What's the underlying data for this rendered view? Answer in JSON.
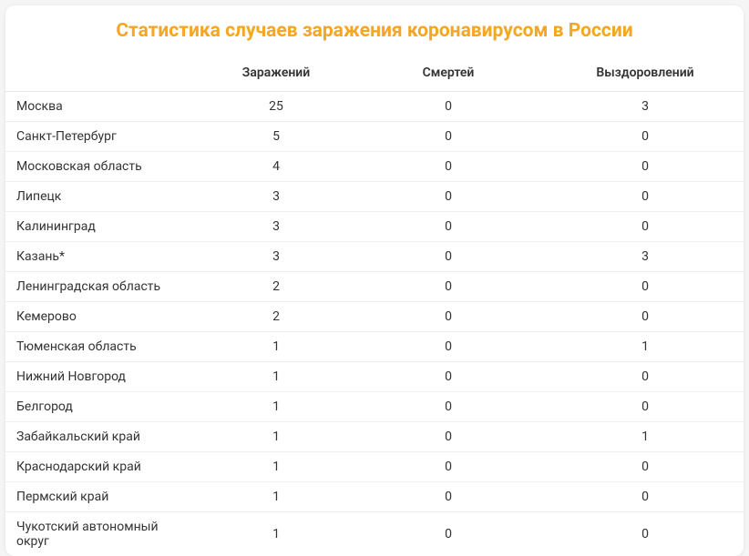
{
  "title": "Статистика случаев заражения коронавирусом в России",
  "title_color": "#f5a623",
  "background_color": "#ffffff",
  "border_color": "#eeeeee",
  "text_color": "#333333",
  "table": {
    "type": "table",
    "columns": [
      {
        "key": "region",
        "label": "",
        "align": "left"
      },
      {
        "key": "infected",
        "label": "Заражений",
        "align": "center"
      },
      {
        "key": "deaths",
        "label": "Смертей",
        "align": "center"
      },
      {
        "key": "recovered",
        "label": "Выздоровлений",
        "align": "center"
      }
    ],
    "rows": [
      {
        "region": "Москва",
        "infected": 25,
        "deaths": 0,
        "recovered": 3
      },
      {
        "region": "Санкт-Петербург",
        "infected": 5,
        "deaths": 0,
        "recovered": 0
      },
      {
        "region": "Московская область",
        "infected": 4,
        "deaths": 0,
        "recovered": 0
      },
      {
        "region": "Липецк",
        "infected": 3,
        "deaths": 0,
        "recovered": 0
      },
      {
        "region": "Калининград",
        "infected": 3,
        "deaths": 0,
        "recovered": 0
      },
      {
        "region": "Казань*",
        "infected": 3,
        "deaths": 0,
        "recovered": 3
      },
      {
        "region": "Ленинградская область",
        "infected": 2,
        "deaths": 0,
        "recovered": 0
      },
      {
        "region": "Кемерово",
        "infected": 2,
        "deaths": 0,
        "recovered": 0
      },
      {
        "region": "Тюменская область",
        "infected": 1,
        "deaths": 0,
        "recovered": 1
      },
      {
        "region": "Нижний Новгород",
        "infected": 1,
        "deaths": 0,
        "recovered": 0
      },
      {
        "region": "Белгород",
        "infected": 1,
        "deaths": 0,
        "recovered": 0
      },
      {
        "region": "Забайкальский край",
        "infected": 1,
        "deaths": 0,
        "recovered": 1
      },
      {
        "region": "Краснодарский край",
        "infected": 1,
        "deaths": 0,
        "recovered": 0
      },
      {
        "region": "Пермский край",
        "infected": 1,
        "deaths": 0,
        "recovered": 0
      },
      {
        "region": "Чукотский автономный округ",
        "infected": 1,
        "deaths": 0,
        "recovered": 0
      }
    ]
  }
}
